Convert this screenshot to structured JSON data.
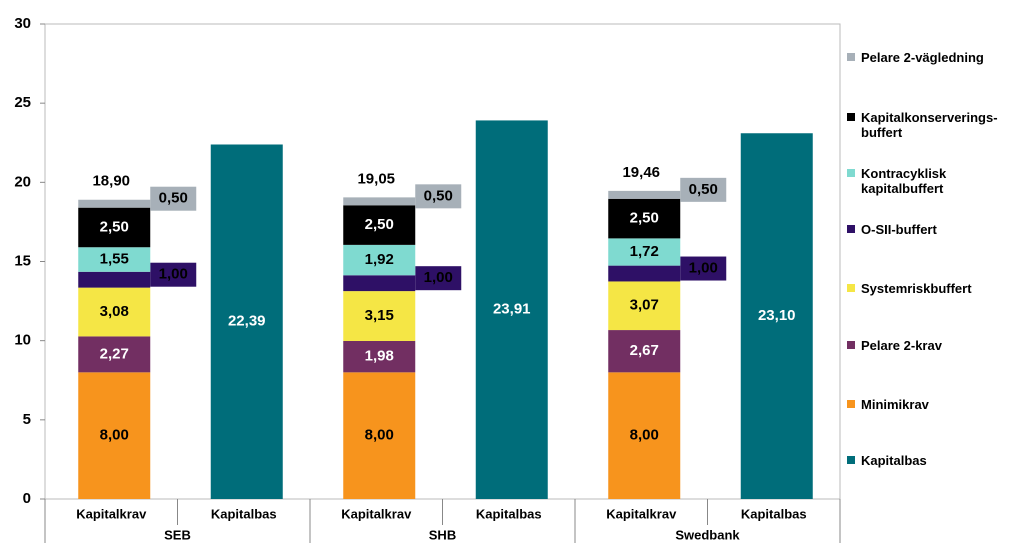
{
  "chart_data": {
    "type": "stacked_bar",
    "categories": [
      "Kapitalkrav",
      "Kapitalbas",
      "Kapitalkrav",
      "Kapitalbas",
      "Kapitalkrav",
      "Kapitalbas"
    ],
    "groups": [
      "SEB",
      "SHB",
      "Swedbank"
    ],
    "series": [
      {
        "name": "Minimikrav",
        "color": "#f7941d",
        "values": [
          8,
          null,
          8,
          null,
          8,
          null
        ],
        "value_labels": [
          "8,00",
          null,
          "8,00",
          null,
          "8,00",
          null
        ]
      },
      {
        "name": "Pelare 2-krav",
        "color": "#722f62",
        "values": [
          2.27,
          null,
          1.98,
          null,
          2.67,
          null
        ],
        "value_labels": [
          "2,27",
          null,
          "1,98",
          null,
          "2,67",
          null
        ]
      },
      {
        "name": "Systemriskbuffert",
        "color": "#f5e645",
        "values": [
          3.08,
          null,
          3.15,
          null,
          3.07,
          null
        ],
        "value_labels": [
          "3,08",
          null,
          "3,15",
          null,
          "3,07",
          null
        ]
      },
      {
        "name": "O-SII-buffert",
        "color": "#2e1066",
        "values": [
          1,
          null,
          1,
          null,
          1,
          null
        ],
        "value_labels": [
          "1,00",
          null,
          "1,00",
          null,
          "1,00",
          null
        ]
      },
      {
        "name": "Kontracyklisk\nkapitalbuffert",
        "color": "#7fdad0",
        "values": [
          1.55,
          null,
          1.92,
          null,
          1.72,
          null
        ],
        "value_labels": [
          "1,55",
          null,
          "1,92",
          null,
          "1,72",
          null
        ]
      },
      {
        "name": "Kapitalkonserverings-\nbuffert",
        "color": "#000000",
        "values": [
          2.5,
          null,
          2.5,
          null,
          2.5,
          null
        ],
        "value_labels": [
          "2,50",
          null,
          "2,50",
          null,
          "2,50",
          null
        ]
      },
      {
        "name": "Pelare 2-vägledning",
        "color": "#a7b0b8",
        "values": [
          0.5,
          null,
          0.5,
          null,
          0.5,
          null
        ],
        "value_labels": [
          "0,50",
          null,
          "0,50",
          null,
          "0,50",
          null
        ]
      },
      {
        "name": "Kapitalbas",
        "color": "#006d7a",
        "values": [
          null,
          22.39,
          null,
          23.91,
          null,
          23.1
        ],
        "value_labels": [
          null,
          "22,39",
          null,
          "23,91",
          null,
          "23,10"
        ]
      }
    ],
    "totals": {
      "values": [
        18.9,
        null,
        19.05,
        null,
        19.46,
        null
      ],
      "value_labels": [
        "18,90",
        null,
        "19,05",
        null,
        "19,46",
        null
      ]
    },
    "ylim": [
      0,
      30
    ],
    "yticks": [
      0,
      5,
      10,
      15,
      20,
      25,
      30
    ],
    "legend": "right"
  }
}
